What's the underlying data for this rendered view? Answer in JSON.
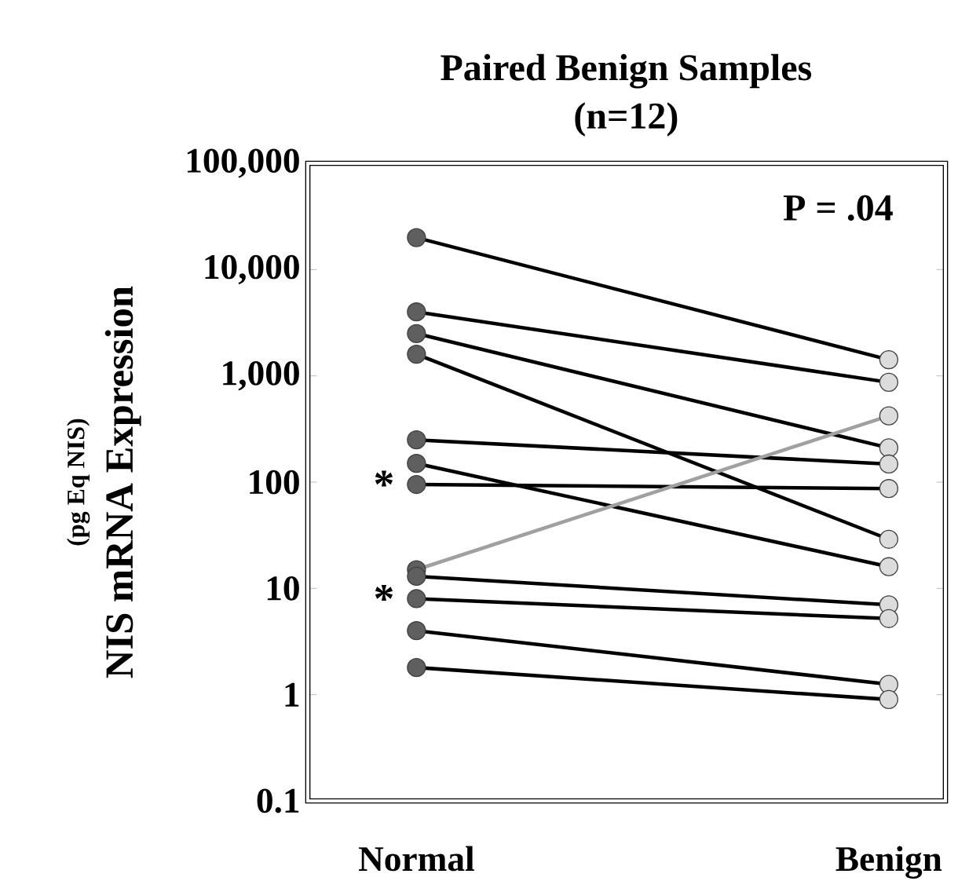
{
  "chart_data": {
    "type": "line",
    "title": "Paired Benign Samples",
    "subtitle": "(n=12)",
    "ylabel": "NIS mRNA Expression",
    "categories": [
      "Normal",
      "Benign"
    ],
    "log": true,
    "ylim": [
      0.1,
      100000
    ],
    "yticks": [
      {
        "value": 100000,
        "label": "100,000"
      },
      {
        "value": 10000,
        "label": "10,000"
      },
      {
        "value": 1000,
        "label": "1,000"
      },
      100,
      10,
      1,
      0.1
    ],
    "annotations": [
      "P = .04",
      "(pg Eq NIS)",
      {
        "text": "*",
        "x": "Normal",
        "y": 95
      },
      {
        "text": "*",
        "x": "Normal",
        "y": 8
      }
    ],
    "series": [
      {
        "type": "line",
        "color": "#000000",
        "values": [
          20000,
          1420
        ]
      },
      {
        "type": "line",
        "color": "#000000",
        "values": [
          4000,
          870
        ]
      },
      {
        "type": "line",
        "color": "#000000",
        "values": [
          2500,
          210
        ]
      },
      {
        "type": "line",
        "color": "#000000",
        "values": [
          1600,
          29
        ]
      },
      {
        "type": "line",
        "color": "#000000",
        "values": [
          250,
          148
        ]
      },
      {
        "type": "line",
        "color": "#000000",
        "values": [
          150,
          16
        ]
      },
      {
        "type": "line",
        "color": "#000000",
        "values": [
          95,
          87
        ]
      },
      {
        "type": "line",
        "color": "#a0a0a0",
        "values": [
          15,
          420
        ]
      },
      {
        "type": "line",
        "color": "#000000",
        "values": [
          13,
          7
        ]
      },
      {
        "type": "line",
        "color": "#000000",
        "values": [
          8,
          5.2
        ]
      },
      {
        "type": "line",
        "color": "#000000",
        "values": [
          4,
          1.25
        ]
      },
      {
        "type": "line",
        "color": "#000000",
        "values": [
          1.8,
          0.9
        ]
      },
      {
        "type": "scatter",
        "marker": "circle",
        "color": "#5f5f5f",
        "x": [
          "Normal",
          "Normal",
          "Normal",
          "Normal",
          "Normal",
          "Normal",
          "Normal",
          "Normal",
          "Normal",
          "Normal",
          "Normal",
          "Normal"
        ],
        "values": [
          20000,
          4000,
          2500,
          1600,
          250,
          150,
          95,
          15,
          13,
          8,
          4,
          1.8
        ]
      },
      {
        "type": "scatter",
        "marker": "circle",
        "color": "#dcdcdc",
        "x": [
          "Benign",
          "Benign",
          "Benign",
          "Benign",
          "Benign",
          "Benign",
          "Benign",
          "Benign",
          "Benign",
          "Benign",
          "Benign",
          "Benign"
        ],
        "values": [
          1420,
          870,
          210,
          29,
          148,
          16,
          87,
          420,
          7,
          5.2,
          1.25,
          0.9
        ]
      }
    ]
  }
}
